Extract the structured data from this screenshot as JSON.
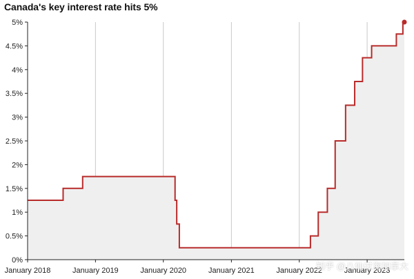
{
  "title": "Canada's key interest rate hits 5%",
  "watermark": "知乎 @八仙过海加拿大",
  "colors": {
    "line": "#b82a2a",
    "fill": "#efefef",
    "gridline": "#c8c8c8",
    "axis": "#222222",
    "end_dot": "#b82a2a"
  },
  "chart_data": {
    "type": "area",
    "title": "Canada's key interest rate hits 5%",
    "xlabel": "",
    "ylabel": "",
    "x_range": [
      "2018-01-01",
      "2023-07-20"
    ],
    "ylim": [
      0,
      5
    ],
    "y_ticks": [
      "0%",
      "0.5%",
      "1%",
      "1.5%",
      "2%",
      "2.5%",
      "3%",
      "3.5%",
      "4%",
      "4.5%",
      "5%"
    ],
    "x_ticks": [
      {
        "label": "January 2018",
        "date": "2018-01-01"
      },
      {
        "label": "January 2019",
        "date": "2019-01-01"
      },
      {
        "label": "January 2020",
        "date": "2020-01-01"
      },
      {
        "label": "January 2021",
        "date": "2021-01-01"
      },
      {
        "label": "January 2022",
        "date": "2022-01-01"
      },
      {
        "label": "January 2023",
        "date": "2023-01-01"
      }
    ],
    "grid": "vertical",
    "step": true,
    "end_marker": true,
    "series": [
      {
        "points": [
          {
            "date": "2018-01-01",
            "value": 1.25
          },
          {
            "date": "2018-07-11",
            "value": 1.5
          },
          {
            "date": "2018-10-24",
            "value": 1.75
          },
          {
            "date": "2020-03-04",
            "value": 1.25
          },
          {
            "date": "2020-03-13",
            "value": 0.75
          },
          {
            "date": "2020-03-27",
            "value": 0.25
          },
          {
            "date": "2022-03-02",
            "value": 0.5
          },
          {
            "date": "2022-04-13",
            "value": 1.0
          },
          {
            "date": "2022-06-01",
            "value": 1.5
          },
          {
            "date": "2022-07-13",
            "value": 2.5
          },
          {
            "date": "2022-09-07",
            "value": 3.25
          },
          {
            "date": "2022-10-26",
            "value": 3.75
          },
          {
            "date": "2022-12-07",
            "value": 4.25
          },
          {
            "date": "2023-01-25",
            "value": 4.5
          },
          {
            "date": "2023-06-07",
            "value": 4.75
          },
          {
            "date": "2023-07-12",
            "value": 5.0
          },
          {
            "date": "2023-07-20",
            "value": 5.0
          }
        ]
      }
    ]
  }
}
